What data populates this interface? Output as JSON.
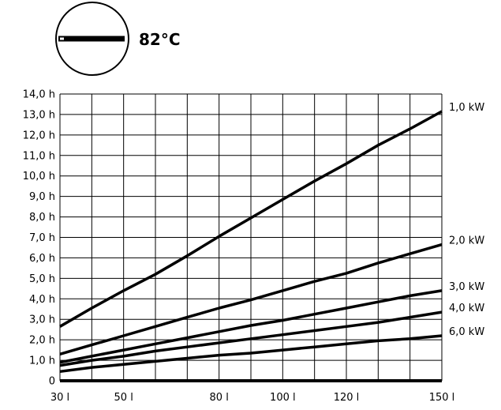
{
  "header": {
    "temperature": "82°C"
  },
  "chart_data": {
    "type": "line",
    "title": "",
    "xlabel": "",
    "ylabel": "",
    "xlim": [
      30,
      150
    ],
    "ylim": [
      0,
      14
    ],
    "grid": true,
    "x_ticks": [
      30,
      40,
      50,
      60,
      70,
      80,
      90,
      100,
      110,
      120,
      130,
      140,
      150
    ],
    "x_tick_labels": [
      "30 l",
      "",
      "50 l",
      "",
      "",
      "80 l",
      "",
      "100 l",
      "",
      "120 l",
      "",
      "",
      "150 l"
    ],
    "y_ticks": [
      0,
      1,
      2,
      3,
      4,
      5,
      6,
      7,
      8,
      9,
      10,
      11,
      12,
      13,
      14
    ],
    "y_tick_labels": [
      "0",
      "1,0 h",
      "2,0 h",
      "3,0 h",
      "4,0 h",
      "5,0 h",
      "6,0 h",
      "7,0 h",
      "8,0 h",
      "9,0 h",
      "10,0 h",
      "11,0 h",
      "12,0 h",
      "13,0 h",
      "14,0 h"
    ],
    "series": [
      {
        "name": "1,0 kW",
        "x": [
          30,
          40,
          50,
          60,
          70,
          80,
          90,
          100,
          110,
          120,
          130,
          140,
          150
        ],
        "y": [
          2.65,
          3.55,
          4.4,
          5.2,
          6.1,
          7.05,
          7.95,
          8.85,
          9.75,
          10.6,
          11.5,
          12.3,
          13.15
        ]
      },
      {
        "name": "2,0 kW",
        "x": [
          30,
          40,
          50,
          60,
          70,
          80,
          90,
          100,
          110,
          120,
          130,
          140,
          150
        ],
        "y": [
          1.3,
          1.75,
          2.2,
          2.65,
          3.1,
          3.55,
          3.95,
          4.4,
          4.85,
          5.25,
          5.75,
          6.2,
          6.65
        ]
      },
      {
        "name": "3,0 kW",
        "x": [
          30,
          40,
          50,
          60,
          70,
          80,
          90,
          100,
          110,
          120,
          130,
          140,
          150
        ],
        "y": [
          0.9,
          1.2,
          1.5,
          1.8,
          2.1,
          2.4,
          2.7,
          2.95,
          3.25,
          3.55,
          3.85,
          4.15,
          4.4
        ]
      },
      {
        "name": "4,0 kW",
        "x": [
          30,
          40,
          50,
          60,
          70,
          80,
          90,
          100,
          110,
          120,
          130,
          140,
          150
        ],
        "y": [
          0.75,
          1.0,
          1.2,
          1.45,
          1.65,
          1.85,
          2.05,
          2.25,
          2.45,
          2.65,
          2.85,
          3.1,
          3.35
        ]
      },
      {
        "name": "6,0 kW",
        "x": [
          30,
          40,
          50,
          60,
          70,
          80,
          90,
          100,
          110,
          120,
          130,
          140,
          150
        ],
        "y": [
          0.45,
          0.65,
          0.8,
          0.95,
          1.1,
          1.25,
          1.35,
          1.5,
          1.65,
          1.8,
          1.95,
          2.05,
          2.2
        ]
      }
    ],
    "colors": {
      "line": "#000000",
      "grid": "#000000"
    }
  }
}
